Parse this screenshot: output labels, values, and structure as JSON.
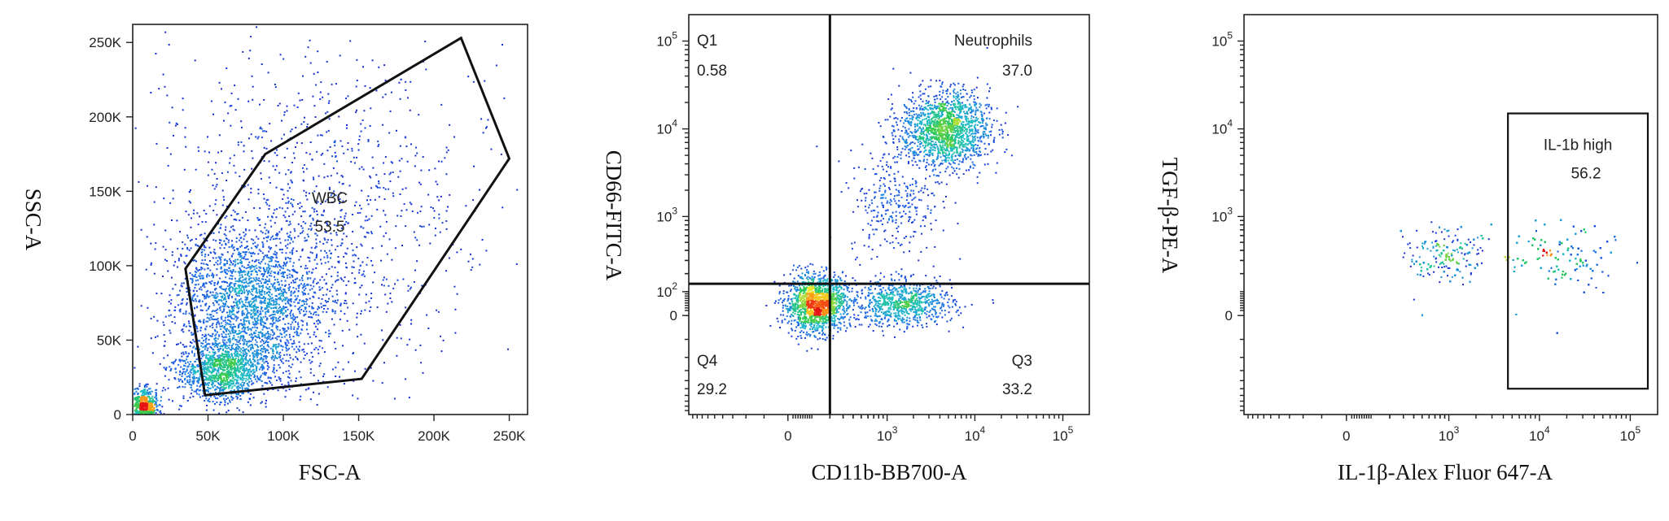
{
  "chart_data": [
    {
      "type": "scatter",
      "variant": "flow-cytometry-density-dot-plot",
      "xlabel": "FSC-A",
      "ylabel": "SSC-A",
      "x_scale": "linear",
      "y_scale": "linear",
      "xlim": [
        0,
        262144
      ],
      "ylim": [
        0,
        262144
      ],
      "x_ticks": [
        {
          "value": 0,
          "label": "0"
        },
        {
          "value": 50000,
          "label": "50K"
        },
        {
          "value": 100000,
          "label": "100K"
        },
        {
          "value": 150000,
          "label": "150K"
        },
        {
          "value": 200000,
          "label": "200K"
        },
        {
          "value": 250000,
          "label": "250K"
        }
      ],
      "y_ticks": [
        {
          "value": 0,
          "label": "0"
        },
        {
          "value": 50000,
          "label": "50K"
        },
        {
          "value": 100000,
          "label": "100K"
        },
        {
          "value": 150000,
          "label": "150K"
        },
        {
          "value": 200000,
          "label": "200K"
        },
        {
          "value": 250000,
          "label": "250K"
        }
      ],
      "populations": [
        {
          "x": 7000,
          "y": 5000,
          "sx": 5000,
          "sy": 6000,
          "n": 700
        },
        {
          "x": 60000,
          "y": 30000,
          "sx": 15000,
          "sy": 10000,
          "n": 1200
        },
        {
          "x": 78000,
          "y": 75000,
          "sx": 25000,
          "sy": 25000,
          "n": 2200
        },
        {
          "x": 115000,
          "y": 120000,
          "sx": 50000,
          "sy": 50000,
          "n": 800
        },
        {
          "x": 140000,
          "y": 170000,
          "sx": 55000,
          "sy": 55000,
          "n": 350
        }
      ],
      "gates": [
        {
          "kind": "polygon",
          "name": "WBC",
          "value": "53.5",
          "vertices": [
            [
              35000,
              98000
            ],
            [
              88000,
              175000
            ],
            [
              218000,
              253000
            ],
            [
              250000,
              172000
            ],
            [
              152000,
              24000
            ],
            [
              48000,
              13000
            ]
          ]
        }
      ]
    },
    {
      "type": "scatter",
      "variant": "flow-cytometry-density-dot-plot",
      "xlabel": "CD11b-BB700-A",
      "ylabel": "CD66-FITC-A",
      "x_scale": "biexponential",
      "y_scale": "biexponential",
      "xlim": [
        -1000,
        200000
      ],
      "ylim": [
        -1000,
        200000
      ],
      "x_ticks": [
        {
          "value": 0,
          "base": "0",
          "exp": ""
        },
        {
          "value": 1000,
          "base": "10",
          "exp": "3"
        },
        {
          "value": 10000,
          "base": "10",
          "exp": "4"
        },
        {
          "value": 100000,
          "base": "10",
          "exp": "5"
        }
      ],
      "y_ticks": [
        {
          "value": 0,
          "base": "0",
          "exp": ""
        },
        {
          "value": 100,
          "base": "10",
          "exp": "2"
        },
        {
          "value": 1000,
          "base": "10",
          "exp": "3"
        },
        {
          "value": 10000,
          "base": "10",
          "exp": "4"
        },
        {
          "value": 100000,
          "base": "10",
          "exp": "5"
        }
      ],
      "quadrant_divider": {
        "x": 200,
        "y": 140
      },
      "populations": [
        {
          "x": 120,
          "y": 50,
          "sx": 90,
          "sy": 60,
          "n": 1500
        },
        {
          "x": 1500,
          "y": 50,
          "sx": 1400,
          "sy": 50,
          "n": 800
        },
        {
          "x": 4500,
          "y": 10000,
          "sx": 3500,
          "sy": 6500,
          "n": 1600
        },
        {
          "x": 1200,
          "y": 1500,
          "sx": 1000,
          "sy": 1500,
          "n": 300
        }
      ],
      "quadrants": [
        {
          "name": "Q1",
          "value": "0.58"
        },
        {
          "name": "Neutrophils",
          "value": "37.0"
        },
        {
          "name": "Q3",
          "value": "33.2"
        },
        {
          "name": "Q4",
          "value": "29.2"
        }
      ]
    },
    {
      "type": "scatter",
      "variant": "flow-cytometry-density-dot-plot",
      "xlabel": "IL-1β-Alex Fluor 647-A",
      "ylabel": "TGF-β-PE-A",
      "x_scale": "biexponential",
      "y_scale": "biexponential",
      "xlim": [
        -1000,
        200000
      ],
      "ylim": [
        -1000,
        200000
      ],
      "x_ticks": [
        {
          "value": 0,
          "base": "0",
          "exp": ""
        },
        {
          "value": 1000,
          "base": "10",
          "exp": "3"
        },
        {
          "value": 10000,
          "base": "10",
          "exp": "4"
        },
        {
          "value": 100000,
          "base": "10",
          "exp": "5"
        }
      ],
      "y_ticks": [
        {
          "value": 0,
          "base": "0",
          "exp": ""
        },
        {
          "value": 1000,
          "base": "10",
          "exp": "3"
        },
        {
          "value": 10000,
          "base": "10",
          "exp": "4"
        },
        {
          "value": 100000,
          "base": "10",
          "exp": "5"
        }
      ],
      "populations": [
        {
          "x": 1000,
          "y": 350,
          "sx": 700,
          "sy": 180,
          "n": 1300
        },
        {
          "x": 12000,
          "y": 400,
          "sx": 10000,
          "sy": 220,
          "n": 1500
        },
        {
          "x": 30000,
          "y": 300,
          "sx": 20000,
          "sy": 200,
          "n": 400
        }
      ],
      "gates": [
        {
          "kind": "rectangle",
          "name": "IL-1b high",
          "value": "56.2",
          "x_range": [
            4500,
            180000
          ],
          "y_range": [
            -500,
            15000
          ]
        }
      ]
    }
  ]
}
